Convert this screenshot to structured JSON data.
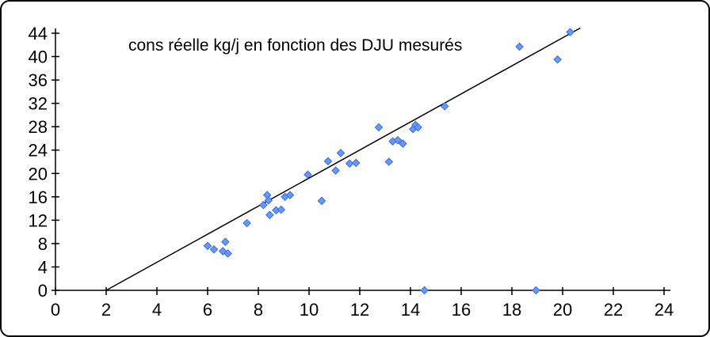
{
  "chart_data": {
    "type": "scatter",
    "title": "cons réelle kg/j en fonction des DJU mesurés",
    "xlabel": "",
    "ylabel": "",
    "xlim": [
      0,
      24
    ],
    "xstep": 2,
    "ylim": [
      0,
      44
    ],
    "ystep": 4,
    "grid": false,
    "legend": "none",
    "marker": {
      "shape": "diamond",
      "fill": "#6699FF",
      "stroke": "#3F6BD8"
    },
    "trendline": {
      "color": "#000000",
      "x": [
        2.0,
        20.7
      ],
      "y": [
        0,
        44.9
      ]
    },
    "points": [
      [
        6.0,
        7.6
      ],
      [
        6.25,
        7.0
      ],
      [
        6.6,
        6.7
      ],
      [
        6.7,
        8.3
      ],
      [
        6.8,
        6.3
      ],
      [
        7.55,
        11.5
      ],
      [
        8.2,
        14.6
      ],
      [
        8.35,
        16.3
      ],
      [
        8.4,
        15.4
      ],
      [
        8.45,
        12.9
      ],
      [
        8.7,
        13.7
      ],
      [
        8.9,
        13.8
      ],
      [
        9.05,
        16.0
      ],
      [
        9.25,
        16.3
      ],
      [
        9.95,
        19.8
      ],
      [
        10.5,
        15.3
      ],
      [
        10.75,
        22.1
      ],
      [
        11.05,
        20.5
      ],
      [
        11.25,
        23.5
      ],
      [
        11.6,
        21.7
      ],
      [
        11.85,
        21.8
      ],
      [
        12.75,
        27.9
      ],
      [
        13.15,
        22.0
      ],
      [
        13.3,
        25.5
      ],
      [
        13.5,
        25.7
      ],
      [
        13.7,
        25.1
      ],
      [
        14.1,
        27.6
      ],
      [
        14.2,
        28.3
      ],
      [
        14.3,
        27.9
      ],
      [
        14.55,
        0
      ],
      [
        15.35,
        31.5
      ],
      [
        18.3,
        41.7
      ],
      [
        18.95,
        0
      ],
      [
        19.8,
        39.5
      ],
      [
        20.3,
        44.2
      ]
    ],
    "x_tick_labels": [
      "0",
      "2",
      "4",
      "6",
      "8",
      "10",
      "12",
      "14",
      "16",
      "18",
      "20",
      "22",
      "24"
    ],
    "y_tick_labels": [
      "0",
      "4",
      "8",
      "12",
      "16",
      "20",
      "24",
      "28",
      "32",
      "36",
      "40",
      "44"
    ]
  }
}
